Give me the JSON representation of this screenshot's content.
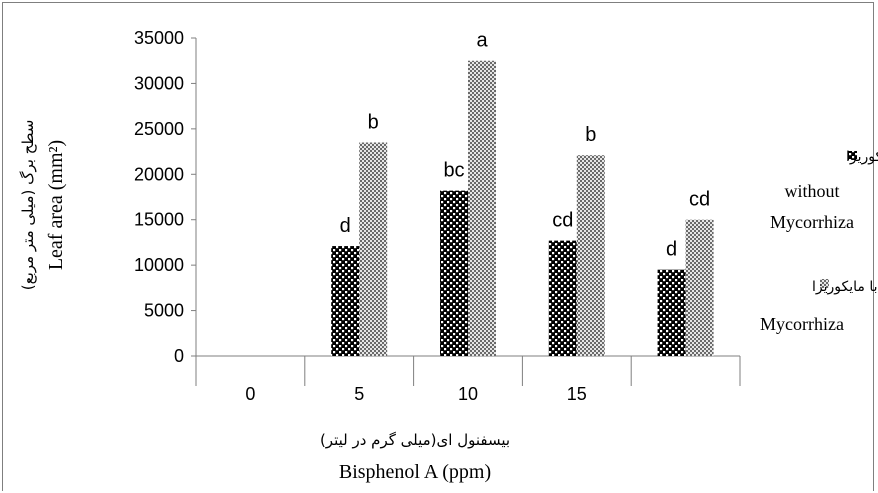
{
  "chart_data": {
    "type": "bar",
    "categories": [
      "0",
      "5",
      "10",
      "15",
      ""
    ],
    "series": [
      {
        "name": "without Mycorrhiza",
        "name_fa": "بدون مایکوریزا",
        "values": [
          0,
          12100,
          18200,
          12700,
          9500
        ],
        "letters": [
          "",
          "d",
          "bc",
          "cd",
          "d"
        ]
      },
      {
        "name": "Mycorrhiza",
        "name_fa": "با مایکوریزا",
        "values": [
          0,
          23500,
          32500,
          22100,
          15000
        ],
        "letters": [
          "",
          "b",
          "a",
          "b",
          "cd"
        ]
      }
    ],
    "xlabel": "Bisphenol A (ppm)",
    "xlabel_fa": "بیسفنول ای(میلی گرم در لیتر)",
    "ylabel": "Leaf area (mm²)",
    "ylabel_fa": "سطح برگ (میلی متر مربع)",
    "ylim": [
      0,
      35000
    ],
    "yticks": [
      "0",
      "5000",
      "10000",
      "15000",
      "20000",
      "25000",
      "30000",
      "35000"
    ],
    "grid": false,
    "legend_position": "right",
    "colors": {
      "series1": "#000000",
      "series2": "#808080",
      "axis": "#7f7f7f"
    }
  }
}
